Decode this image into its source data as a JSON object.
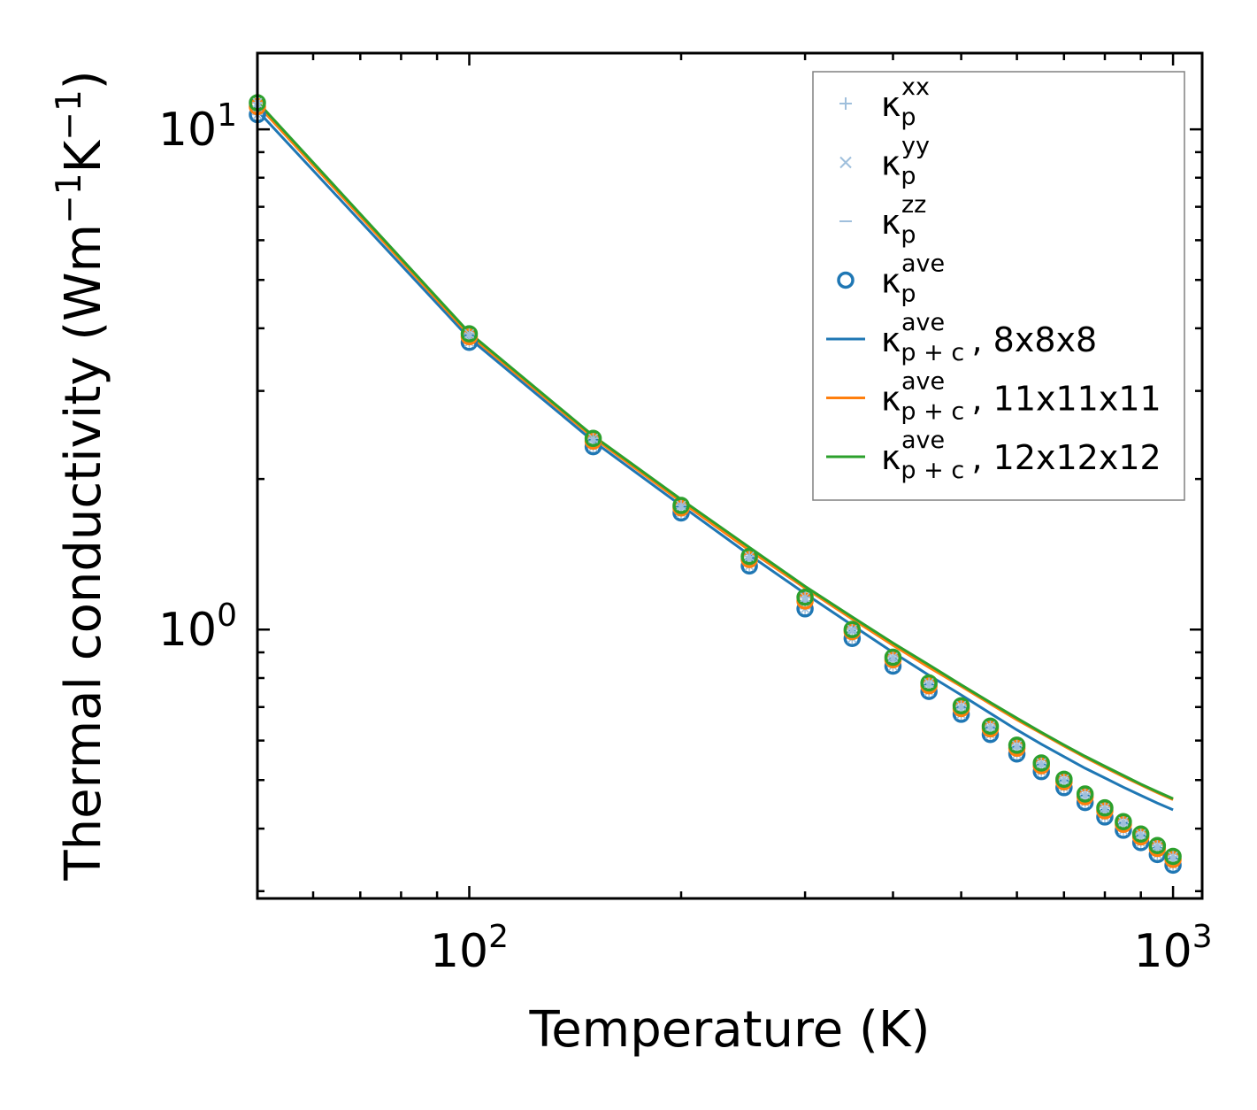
{
  "chart_data": {
    "type": "line+scatter",
    "xscale": "log",
    "yscale": "log",
    "xlabel": "Temperature (K)",
    "ylabel": {
      "text": "Thermal conductivity (Wm",
      "sup1": "−1",
      "mid": "K",
      "sup2": "−1",
      "end": ")"
    },
    "xlim": [
      50,
      1100
    ],
    "ylim": [
      0.29,
      14.2
    ],
    "xticks": [
      {
        "value": 100,
        "base": "10",
        "exp": "2"
      },
      {
        "value": 1000,
        "base": "10",
        "exp": "3"
      }
    ],
    "yticks": [
      {
        "value": 1,
        "base": "10",
        "exp": "0"
      },
      {
        "value": 10,
        "base": "10",
        "exp": "1"
      }
    ],
    "temperatures": [
      50,
      100,
      150,
      200,
      250,
      300,
      350,
      400,
      450,
      500,
      550,
      600,
      650,
      700,
      750,
      800,
      850,
      900,
      950,
      1000
    ],
    "series": [
      {
        "name": "8x8x8",
        "color": "#1f77b4",
        "scatter": [
          10.7,
          3.75,
          2.32,
          1.71,
          1.34,
          1.1,
          0.96,
          0.845,
          0.752,
          0.677,
          0.617,
          0.564,
          0.52,
          0.483,
          0.451,
          0.422,
          0.397,
          0.375,
          0.355,
          0.338
        ],
        "line": [
          10.9,
          3.82,
          2.38,
          1.77,
          1.41,
          1.18,
          1.02,
          0.9,
          0.81,
          0.74,
          0.68,
          0.63,
          0.59,
          0.557,
          0.528,
          0.505,
          0.484,
          0.466,
          0.45,
          0.436
        ]
      },
      {
        "name": "11x11x11",
        "color": "#ff7f0e",
        "scatter": [
          11.1,
          3.85,
          2.38,
          1.75,
          1.38,
          1.14,
          0.99,
          0.87,
          0.772,
          0.695,
          0.633,
          0.579,
          0.534,
          0.496,
          0.463,
          0.434,
          0.408,
          0.385,
          0.365,
          0.347
        ],
        "line": [
          11.2,
          3.88,
          2.42,
          1.8,
          1.44,
          1.21,
          1.05,
          0.93,
          0.84,
          0.77,
          0.71,
          0.66,
          0.62,
          0.585,
          0.555,
          0.53,
          0.508,
          0.489,
          0.472,
          0.457
        ]
      },
      {
        "name": "12x12x12",
        "color": "#2ca02c",
        "scatter": [
          11.3,
          3.9,
          2.41,
          1.77,
          1.4,
          1.16,
          1.0,
          0.88,
          0.782,
          0.704,
          0.641,
          0.587,
          0.541,
          0.502,
          0.469,
          0.44,
          0.413,
          0.39,
          0.37,
          0.352
        ],
        "line": [
          11.35,
          3.92,
          2.44,
          1.82,
          1.46,
          1.22,
          1.06,
          0.94,
          0.85,
          0.775,
          0.715,
          0.665,
          0.623,
          0.588,
          0.558,
          0.533,
          0.511,
          0.491,
          0.474,
          0.459
        ]
      }
    ],
    "legend": {
      "location": "top-right",
      "entries": [
        {
          "marker": "plus",
          "kappa": "κ",
          "sub": "p",
          "sup": "xx",
          "suffix": ""
        },
        {
          "marker": "cross",
          "kappa": "κ",
          "sub": "p",
          "sup": "yy",
          "suffix": ""
        },
        {
          "marker": "dash",
          "kappa": "κ",
          "sub": "p",
          "sup": "zz",
          "suffix": ""
        },
        {
          "marker": "circle",
          "kappa": "κ",
          "sub": "p",
          "sup": "ave",
          "suffix": ""
        },
        {
          "marker": "line",
          "color": "#1f77b4",
          "kappa": "κ",
          "sub": "p + c",
          "sup": "ave",
          "suffix": ", 8x8x8"
        },
        {
          "marker": "line",
          "color": "#ff7f0e",
          "kappa": "κ",
          "sub": "p + c",
          "sup": "ave",
          "suffix": ", 11x11x11"
        },
        {
          "marker": "line",
          "color": "#2ca02c",
          "kappa": "κ",
          "sub": "p + c",
          "sup": "ave",
          "suffix": ", 12x12x12"
        }
      ]
    },
    "colors": {
      "faint_marker": "#9fbfdc",
      "circle": "#1f77b4",
      "legend_border": "#808080"
    }
  }
}
